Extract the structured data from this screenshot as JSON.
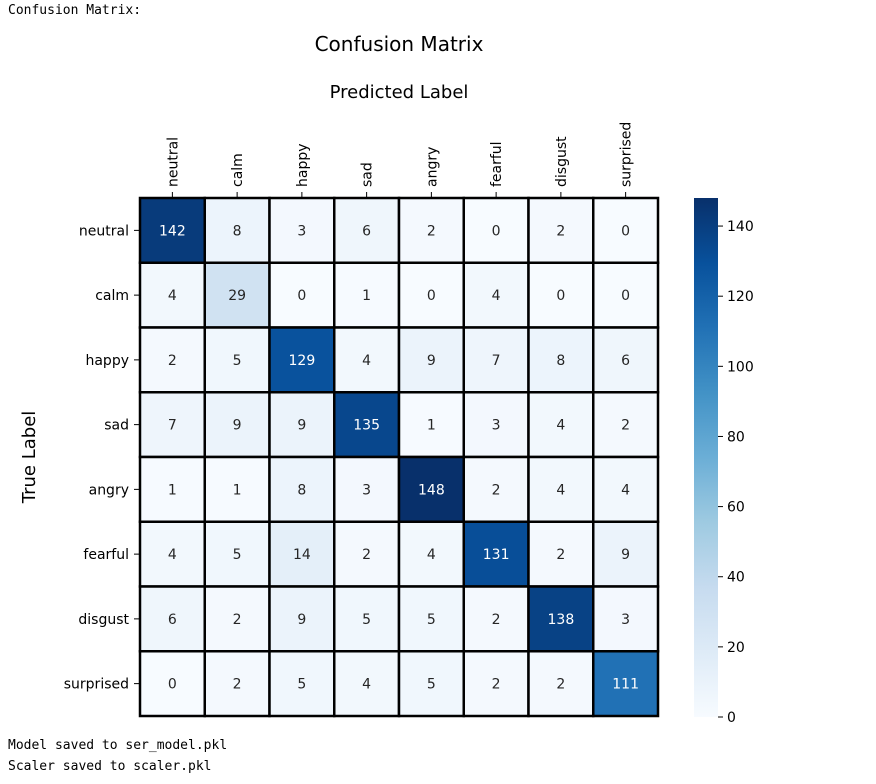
{
  "console": {
    "header": "Confusion Matrix:",
    "footer": [
      "Model saved to ser_model.pkl",
      "Scaler saved to scaler.pkl"
    ]
  },
  "chart_data": {
    "type": "heatmap",
    "title": "Confusion Matrix",
    "xlabel": "Predicted Label",
    "ylabel": "True Label",
    "x_categories": [
      "neutral",
      "calm",
      "happy",
      "sad",
      "angry",
      "fearful",
      "disgust",
      "surprised"
    ],
    "y_categories": [
      "neutral",
      "calm",
      "happy",
      "sad",
      "angry",
      "fearful",
      "disgust",
      "surprised"
    ],
    "matrix": [
      [
        142,
        8,
        3,
        6,
        2,
        0,
        2,
        0
      ],
      [
        4,
        29,
        0,
        1,
        0,
        4,
        0,
        0
      ],
      [
        2,
        5,
        129,
        4,
        9,
        7,
        8,
        6
      ],
      [
        7,
        9,
        9,
        135,
        1,
        3,
        4,
        2
      ],
      [
        1,
        1,
        8,
        3,
        148,
        2,
        4,
        4
      ],
      [
        4,
        5,
        14,
        2,
        4,
        131,
        2,
        9
      ],
      [
        6,
        2,
        9,
        5,
        5,
        2,
        138,
        3
      ],
      [
        0,
        2,
        5,
        4,
        5,
        2,
        2,
        111
      ]
    ],
    "colormap": "Blues",
    "colorbar": {
      "vmin": 0,
      "vmax": 148,
      "ticks": [
        0,
        20,
        40,
        60,
        80,
        100,
        120,
        140
      ]
    },
    "x_axis_position": "top",
    "cell_border_color": "#000000"
  }
}
